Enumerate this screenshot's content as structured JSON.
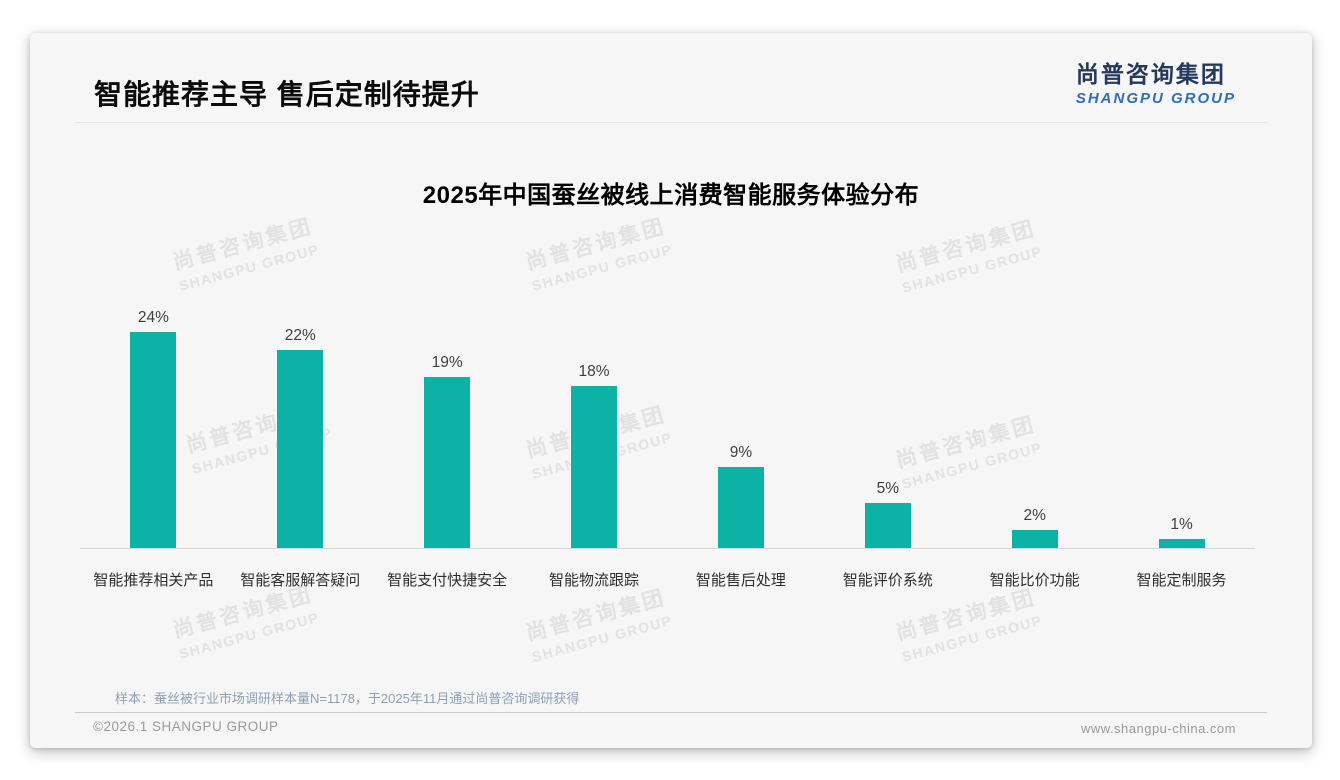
{
  "page": {
    "title": "智能推荐主导 售后定制待提升",
    "logo": {
      "cn": "尚普咨询集团",
      "en": "SHANGPU GROUP"
    },
    "watermark": {
      "cn": "尚普咨询集团",
      "en": "SHANGPU GROUP"
    },
    "note": "样本：蚕丝被行业市场调研样本量N=1178，于2025年11月通过尚普咨询调研获得",
    "footer": {
      "left": "©2026.1 SHANGPU GROUP",
      "right": "www.shangpu-china.com"
    }
  },
  "chart_data": {
    "type": "bar",
    "title": "2025年中国蚕丝被线上消费智能服务体验分布",
    "categories": [
      "智能推荐相关产品",
      "智能客服解答疑问",
      "智能支付快捷安全",
      "智能物流跟踪",
      "智能售后处理",
      "智能评价系统",
      "智能比价功能",
      "智能定制服务"
    ],
    "values": [
      24,
      22,
      19,
      18,
      9,
      5,
      2,
      1
    ],
    "unit": "%",
    "value_labels": "above bars",
    "bar_color": "#0cb2a6",
    "xlabel": "",
    "ylabel": "",
    "ylim": [
      0,
      25
    ],
    "grid": false,
    "legend": false
  }
}
